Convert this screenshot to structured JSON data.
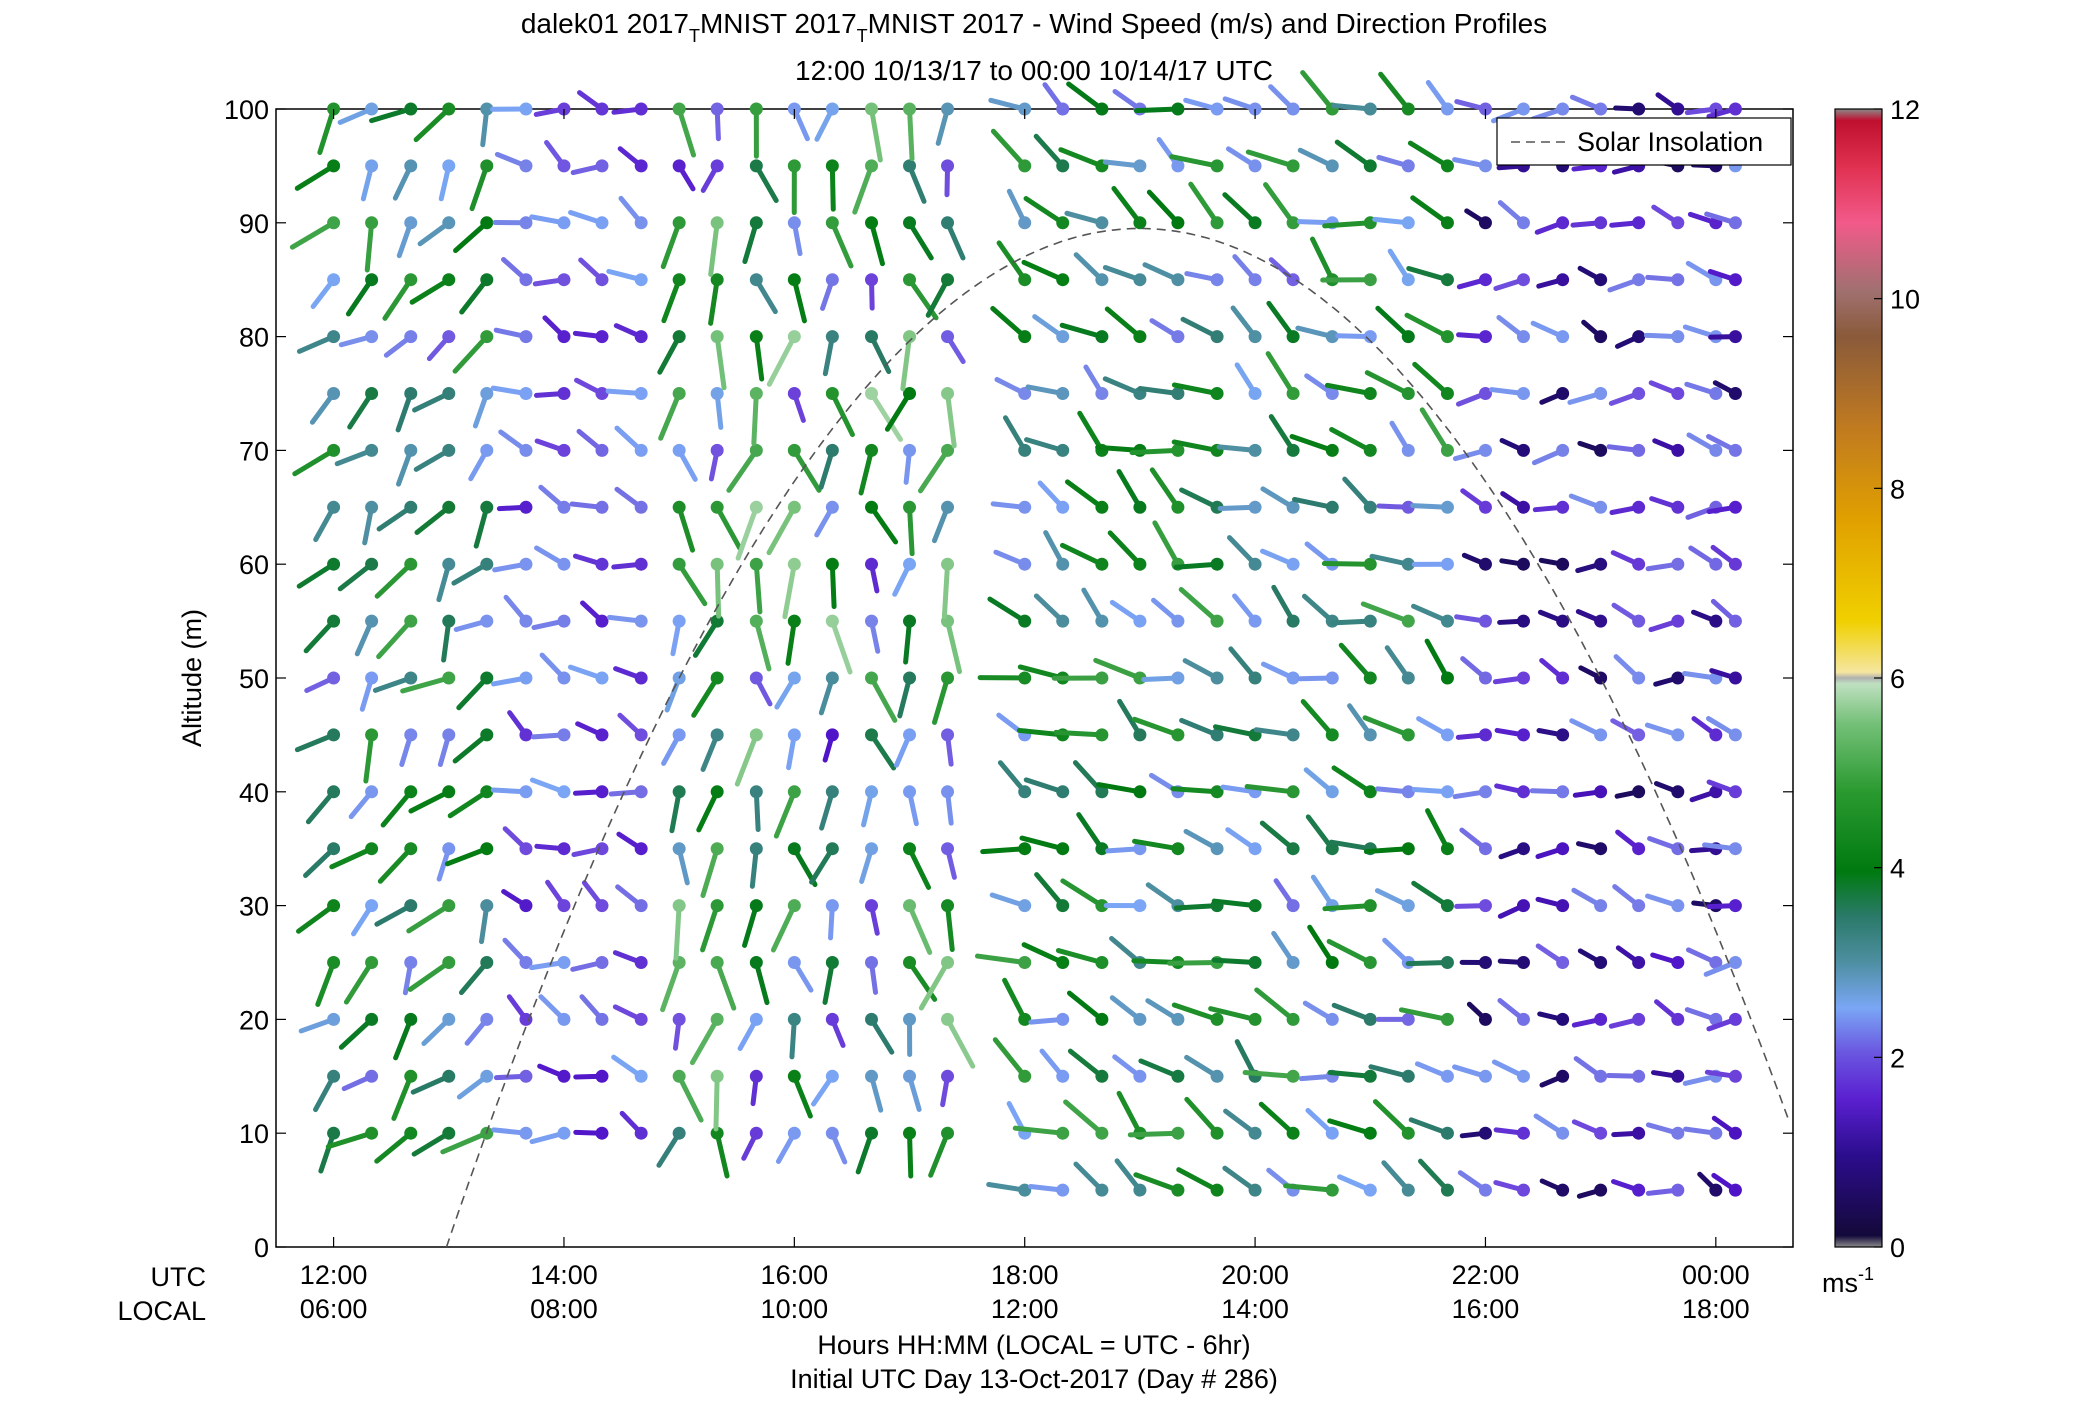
{
  "chart_data": {
    "type": "wind_barb_profile",
    "title_parts": {
      "site": "dalek01",
      "seg1": "2017",
      "sub1": "T",
      "seg2": "MNIST 2017",
      "sub2": "T",
      "seg3": "MNIST 2017 - Wind Speed (m/s) and Direction Profiles"
    },
    "subtitle": "12:00 10/13/17 to 00:00 10/14/17  UTC",
    "ylabel": "Altitude (m)",
    "xlabel": "Hours HH:MM  (LOCAL = UTC - 6hr)",
    "footer": "Initial UTC Day 13-Oct-2017 (Day # 286)",
    "row_label_utc": "UTC",
    "row_label_local": "LOCAL",
    "xlim_hours": [
      11.5,
      24.67
    ],
    "ylim": [
      0,
      100
    ],
    "y_ticks": [
      "0",
      "10",
      "20",
      "30",
      "40",
      "50",
      "60",
      "70",
      "80",
      "90",
      "100"
    ],
    "x_ticks_utc": [
      "12:00",
      "14:00",
      "16:00",
      "18:00",
      "20:00",
      "22:00",
      "00:00"
    ],
    "x_ticks_local": [
      "06:00",
      "08:00",
      "10:00",
      "12:00",
      "14:00",
      "16:00",
      "18:00"
    ],
    "x_tick_hours": [
      12,
      14,
      16,
      18,
      20,
      22,
      24
    ],
    "legend": {
      "entries": [
        "Solar Insolation"
      ],
      "location": "top-right"
    },
    "solar_insolation": {
      "start_hour": 12.98,
      "peak_hour": 19.0,
      "peak_altitude": 89.5,
      "end_hour": 24.67
    },
    "colorbar": {
      "min": 0,
      "max": 12,
      "ticks": [
        "0",
        "2",
        "4",
        "6",
        "8",
        "10",
        "12"
      ],
      "unit": "ms",
      "unit_sup": "-1"
    },
    "column_hours": [
      12.0,
      12.33,
      12.67,
      13.0,
      13.33,
      13.67,
      14.0,
      14.33,
      14.67,
      15.0,
      15.33,
      15.67,
      16.0,
      16.33,
      16.67,
      17.0,
      17.33,
      18.0,
      18.33,
      18.67,
      19.0,
      19.33,
      19.67,
      20.0,
      20.33,
      20.67,
      21.0,
      21.33,
      21.67,
      22.0,
      22.33,
      22.67,
      23.0,
      23.33,
      23.67,
      24.0,
      24.17
    ],
    "level_altitudes": [
      5,
      10,
      15,
      20,
      25,
      30,
      35,
      40,
      45,
      50,
      55,
      60,
      65,
      70,
      75,
      80,
      85,
      90,
      95,
      100
    ],
    "barb_field": {
      "description": "Wind barbs at each column/level; speed shown by color (m/s), direction by stem angle",
      "regimes": [
        {
          "hours": [
            12.0,
            13.33
          ],
          "speed_range": [
            1.5,
            4.5
          ],
          "direction_deg": 220
        },
        {
          "hours": [
            13.67,
            14.67
          ],
          "speed_range": [
            1.0,
            2.2
          ],
          "direction_deg": 290
        },
        {
          "hours": [
            15.0,
            17.33
          ],
          "speed_range": [
            1.0,
            5.5
          ],
          "direction_deg": 180
        },
        {
          "hours": [
            18.0,
            21.67
          ],
          "speed_range": [
            1.5,
            4.5
          ],
          "direction_deg": 300
        },
        {
          "hours": [
            22.0,
            24.17
          ],
          "speed_range": [
            0.3,
            2.0
          ],
          "direction_deg": 280
        }
      ]
    }
  }
}
